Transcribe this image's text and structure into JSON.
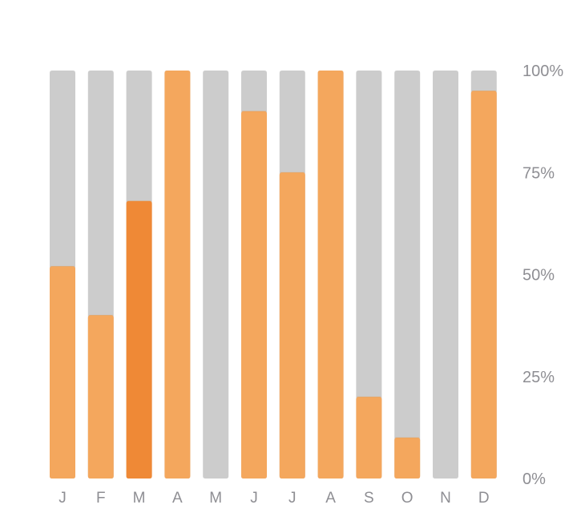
{
  "chart_data": {
    "type": "bar",
    "stacked_percent": true,
    "categories": [
      "J",
      "F",
      "M",
      "A",
      "M",
      "J",
      "J",
      "A",
      "S",
      "O",
      "N",
      "D"
    ],
    "values": [
      52,
      40,
      68,
      100,
      0,
      90,
      75,
      100,
      20,
      10,
      0,
      95
    ],
    "highlighted_index": 2,
    "y_ticks": [
      "100%",
      "75%",
      "50%",
      "25%",
      "0%"
    ],
    "y_tick_values": [
      100,
      75,
      50,
      25,
      0
    ],
    "ylim": [
      0,
      100
    ],
    "y_axis_position": "right",
    "grid": false,
    "title": "",
    "xlabel": "",
    "ylabel": ""
  },
  "colors": {
    "fill": "#f4a75d",
    "fill_highlight": "#ef8936",
    "track": "#cccccc",
    "label": "#8e8e93"
  }
}
